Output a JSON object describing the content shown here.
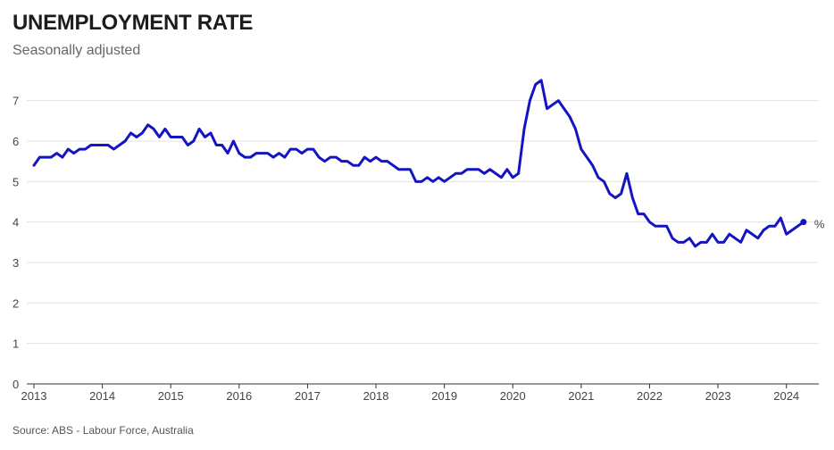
{
  "title": "UNEMPLOYMENT RATE",
  "subtitle": "Seasonally adjusted",
  "source": "Source: ABS - Labour Force, Australia",
  "colors": {
    "series": "#1414c4",
    "grid": "#e3e3e3",
    "axis": "#333333"
  },
  "chart_data": {
    "type": "line",
    "title": "UNEMPLOYMENT RATE",
    "subtitle": "Seasonally adjusted",
    "xlabel": "",
    "ylabel": "",
    "unit_label": "%",
    "ylim": [
      0,
      7.5
    ],
    "yticks": [
      0,
      1,
      2,
      3,
      4,
      5,
      6,
      7
    ],
    "xlim": [
      2013.0,
      2024.5
    ],
    "xticks": [
      "2013",
      "2014",
      "2015",
      "2016",
      "2017",
      "2018",
      "2019",
      "2020",
      "2021",
      "2022",
      "2023",
      "2024"
    ],
    "grid": true,
    "series": [
      {
        "name": "Unemployment rate",
        "start": "2013-01",
        "frequency": "monthly",
        "values": [
          5.4,
          5.6,
          5.6,
          5.6,
          5.7,
          5.6,
          5.8,
          5.7,
          5.8,
          5.8,
          5.9,
          5.9,
          5.9,
          5.9,
          5.8,
          5.9,
          6.0,
          6.2,
          6.1,
          6.2,
          6.4,
          6.3,
          6.1,
          6.3,
          6.1,
          6.1,
          6.1,
          5.9,
          6.0,
          6.3,
          6.1,
          6.2,
          5.9,
          5.9,
          5.7,
          6.0,
          5.7,
          5.6,
          5.6,
          5.7,
          5.7,
          5.7,
          5.6,
          5.7,
          5.6,
          5.8,
          5.8,
          5.7,
          5.8,
          5.8,
          5.6,
          5.5,
          5.6,
          5.6,
          5.5,
          5.5,
          5.4,
          5.4,
          5.6,
          5.5,
          5.6,
          5.5,
          5.5,
          5.4,
          5.3,
          5.3,
          5.3,
          5.0,
          5.0,
          5.1,
          5.0,
          5.1,
          5.0,
          5.1,
          5.2,
          5.2,
          5.3,
          5.3,
          5.3,
          5.2,
          5.3,
          5.2,
          5.1,
          5.3,
          5.1,
          5.2,
          6.3,
          7.0,
          7.4,
          7.5,
          6.8,
          6.9,
          7.0,
          6.8,
          6.6,
          6.3,
          5.8,
          5.6,
          5.4,
          5.1,
          5.0,
          4.7,
          4.6,
          4.7,
          5.2,
          4.6,
          4.2,
          4.2,
          4.0,
          3.9,
          3.9,
          3.9,
          3.6,
          3.5,
          3.5,
          3.6,
          3.4,
          3.5,
          3.5,
          3.7,
          3.5,
          3.5,
          3.7,
          3.6,
          3.5,
          3.8,
          3.7,
          3.6,
          3.8,
          3.9,
          3.9,
          4.1,
          3.7,
          3.8,
          3.9,
          4.0
        ]
      }
    ]
  }
}
